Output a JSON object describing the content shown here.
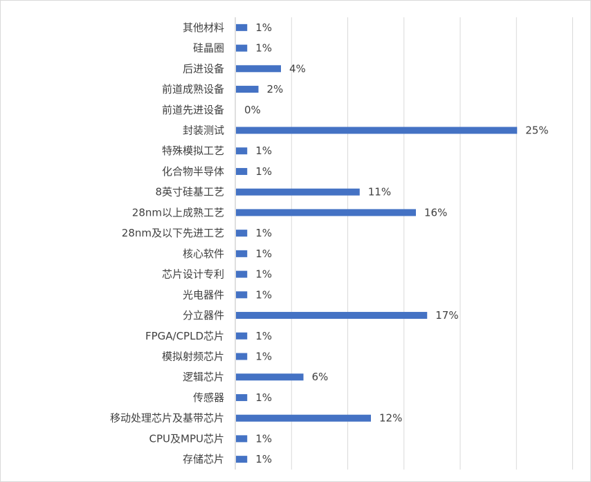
{
  "chart_data": {
    "type": "bar",
    "orientation": "horizontal",
    "categories": [
      "其他材料",
      "硅晶圈",
      "后进设备",
      "前道成熟设备",
      "前道先进设备",
      "封装测试",
      "特殊模拟工艺",
      "化合物半导体",
      "8英寸硅基工艺",
      "28nm以上成熟工艺",
      "28nm及以下先进工艺",
      "核心软件",
      "芯片设计专利",
      "光电器件",
      "分立器件",
      "FPGA/CPLD芯片",
      "模拟射频芯片",
      "逻辑芯片",
      "传感器",
      "移动处理芯片及基带芯片",
      "CPU及MPU芯片",
      "存储芯片"
    ],
    "values": [
      1,
      1,
      4,
      2,
      0,
      25,
      1,
      1,
      11,
      16,
      1,
      1,
      1,
      1,
      17,
      1,
      1,
      6,
      1,
      12,
      1,
      1
    ],
    "value_labels": [
      "1%",
      "1%",
      "4%",
      "2%",
      "0%",
      "25%",
      "1%",
      "1%",
      "11%",
      "16%",
      "1%",
      "1%",
      "1%",
      "1%",
      "17%",
      "1%",
      "1%",
      "6%",
      "1%",
      "12%",
      "1%",
      "1%"
    ],
    "xlim": [
      0,
      30
    ],
    "grid_step": 5,
    "grid": true,
    "legend": "none",
    "bar_color": "#4472C4",
    "title": "",
    "xlabel": "",
    "ylabel": ""
  }
}
